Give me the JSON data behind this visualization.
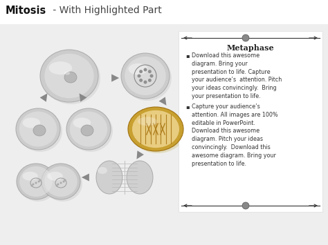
{
  "title_bold": "Mitosis",
  "title_regular": " - With Highlighted Part",
  "bg_color": "#ebebeb",
  "metaphase_title": "Metaphase",
  "bullet1": "Download this awesome\ndiagram. Bring your\npresentation to life. Capture\nyour audience’s  attention. Pitch\nyour ideas convincingly.  Bring\nyour presentation to life.",
  "bullet2": "Capture your audience’s\nattention. All images are 100%\neditable in PowerPoint.\nDownload this awesome\ndiagram. Pitch your ideas\nconvincingly.  Download this\nawesome diagram. Bring your\npresentation to life.",
  "cell_gray": "#c8c8c8",
  "cell_gray_light": "#d8d8d8",
  "cell_outer": "#c0c0c0",
  "cell_inner": "#d8d8d8",
  "cell_gold_outer": "#c8a030",
  "cell_gold_inner": "#e8cc80",
  "cell_gold_lines": "#b08020",
  "arrow_color": "#888888",
  "line_color": "#333333",
  "dot_color": "#888888",
  "text_color": "#222222",
  "bullet_color": "#444444"
}
